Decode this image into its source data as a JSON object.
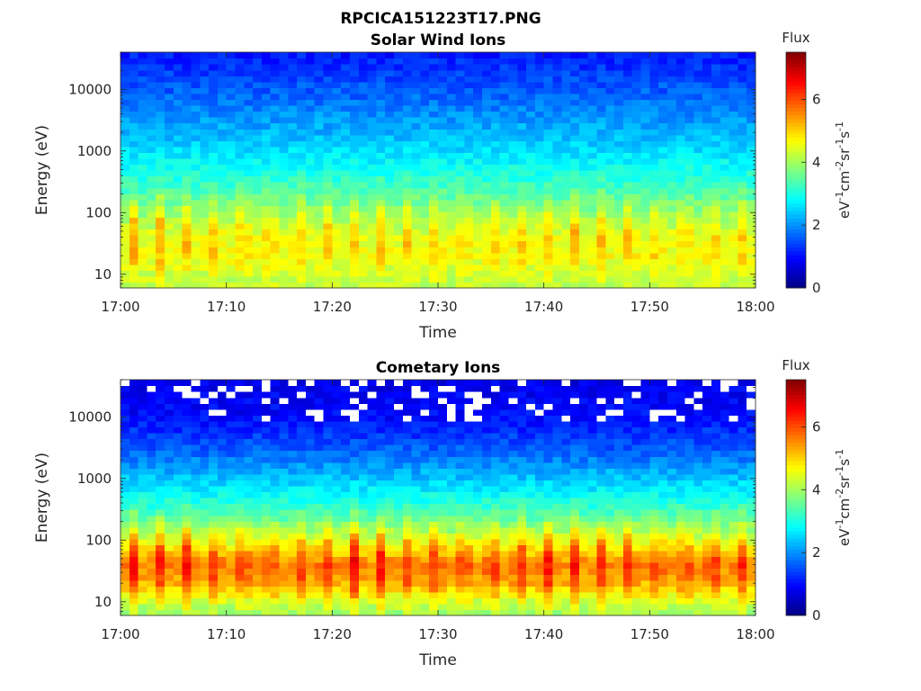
{
  "figure": {
    "title": "RPCICA151223T17.PNG"
  },
  "chart_data": [
    {
      "type": "heatmap",
      "title": "Solar Wind Ions",
      "xlabel": "Time",
      "ylabel": "Energy (eV)",
      "x_ticks": [
        "17:00",
        "17:10",
        "17:20",
        "17:30",
        "17:40",
        "17:50",
        "18:00"
      ],
      "x_range": [
        "17:00",
        "18:00"
      ],
      "y_scale": "log",
      "y_ticks": [
        "10",
        "10000",
        "1000",
        "100"
      ],
      "y_tick_values": [
        10,
        10000,
        1000,
        100
      ],
      "y_range": [
        6,
        40000
      ],
      "colorbar": {
        "title": "Flux",
        "label": "eV-1cm-2sr-1s-1",
        "ticks": [
          "0",
          "2",
          "4",
          "6"
        ],
        "range": [
          0,
          7.5
        ],
        "colormap": "jet"
      },
      "flux_profile": {
        "energy": [
          6,
          10,
          20,
          40,
          100,
          300,
          1000,
          3000,
          10000,
          40000
        ],
        "flux": [
          4.2,
          4.3,
          4.6,
          4.5,
          3.9,
          3.2,
          2.6,
          2.1,
          1.6,
          1.1
        ]
      },
      "bursts": {
        "count": 23,
        "peak_flux": 5.5,
        "peak_energy": 40
      },
      "gaps": false
    },
    {
      "type": "heatmap",
      "title": "Cometary Ions",
      "xlabel": "Time",
      "ylabel": "Energy (eV)",
      "x_ticks": [
        "17:00",
        "17:10",
        "17:20",
        "17:30",
        "17:40",
        "17:50",
        "18:00"
      ],
      "x_range": [
        "17:00",
        "18:00"
      ],
      "y_scale": "log",
      "y_ticks": [
        "10",
        "10000",
        "1000",
        "100"
      ],
      "y_tick_values": [
        10,
        10000,
        1000,
        100
      ],
      "y_range": [
        6,
        40000
      ],
      "colorbar": {
        "title": "Flux",
        "label": "eV-1cm-2sr-1s-1",
        "ticks": [
          "0",
          "2",
          "4",
          "6"
        ],
        "range": [
          0,
          7.5
        ],
        "colormap": "jet"
      },
      "flux_profile": {
        "energy": [
          6,
          10,
          20,
          40,
          100,
          300,
          1000,
          3000,
          10000,
          40000
        ],
        "flux": [
          3.9,
          4.3,
          5.2,
          5.6,
          4.4,
          3.3,
          2.4,
          1.6,
          1.0,
          0.8
        ]
      },
      "bursts": {
        "count": 23,
        "peak_flux": 6.8,
        "peak_energy": 40
      },
      "gaps": true
    }
  ]
}
